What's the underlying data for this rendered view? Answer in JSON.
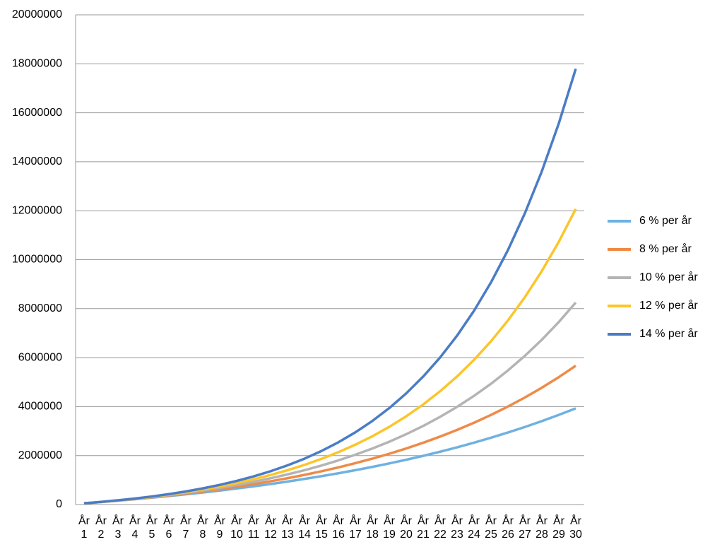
{
  "chart_data": {
    "type": "line",
    "categories": [
      "År 1",
      "År 2",
      "År 3",
      "År 4",
      "År 5",
      "År 6",
      "År 7",
      "År 8",
      "År 9",
      "År 10",
      "År 11",
      "År 12",
      "År 13",
      "År 14",
      "År 15",
      "År 16",
      "År 17",
      "År 18",
      "År 19",
      "År 20",
      "År 21",
      "År 22",
      "År 23",
      "År 24",
      "År 25",
      "År 26",
      "År 27",
      "År 28",
      "År 29",
      "År 30"
    ],
    "series": [
      {
        "name": "6 % per år",
        "color": "#6fb1e1",
        "values": [
          50000,
          102000,
          158000,
          217000,
          280000,
          347000,
          417000,
          492000,
          571000,
          655000,
          744000,
          838000,
          939000,
          1045000,
          1157000,
          1276000,
          1403000,
          1536000,
          1679000,
          1829000,
          1988000,
          2157000,
          2337000,
          2526000,
          2728000,
          2941000,
          3167000,
          3407000,
          3661000,
          3930000
        ]
      },
      {
        "name": "8 % per år",
        "color": "#ef8a47",
        "values": [
          50000,
          104000,
          162000,
          225000,
          293000,
          367000,
          447000,
          532000,
          625000,
          725000,
          833000,
          950000,
          1076000,
          1212000,
          1359000,
          1518000,
          1690000,
          1874000,
          2074000,
          2290000,
          2524000,
          2776000,
          3047000,
          3341000,
          3659000,
          4002000,
          4372000,
          4772000,
          5203000,
          5670000
        ]
      },
      {
        "name": "10 % per år",
        "color": "#b4b4b4",
        "values": [
          50000,
          105000,
          166000,
          233000,
          306000,
          387000,
          476000,
          574000,
          681000,
          799000,
          930000,
          1073000,
          1230000,
          1403000,
          1594000,
          1803000,
          2034000,
          2287000,
          2566000,
          2873000,
          3210000,
          3582000,
          3990000,
          4439000,
          4933000,
          5477000,
          6074000,
          6732000,
          7455000,
          8251000
        ]
      },
      {
        "name": "12 % per år",
        "color": "#fcc52a",
        "values": [
          50000,
          106000,
          169000,
          239000,
          318000,
          406000,
          505000,
          615000,
          739000,
          878000,
          1033000,
          1207000,
          1402000,
          1620000,
          1865000,
          2138000,
          2445000,
          2788000,
          3173000,
          3604000,
          4086000,
          4627000,
          5232000,
          5910000,
          6669000,
          7519000,
          8471000,
          9538000,
          10733000,
          12071000
        ]
      },
      {
        "name": "14 % per år",
        "color": "#4a7cc6",
        "values": [
          50000,
          107000,
          172000,
          246000,
          330000,
          426000,
          535000,
          660000,
          802000,
          964000,
          1149000,
          1360000,
          1601000,
          1874000,
          2187000,
          2543000,
          2949000,
          3412000,
          3939000,
          4540000,
          5226000,
          6007000,
          6898000,
          7914000,
          9072000,
          10392000,
          11897000,
          13612000,
          15568000,
          17797000
        ]
      }
    ],
    "ylim": [
      0,
      20000000
    ],
    "yticks": [
      0,
      2000000,
      4000000,
      6000000,
      8000000,
      10000000,
      12000000,
      14000000,
      16000000,
      18000000,
      20000000
    ],
    "grid": true,
    "legend": "right"
  }
}
